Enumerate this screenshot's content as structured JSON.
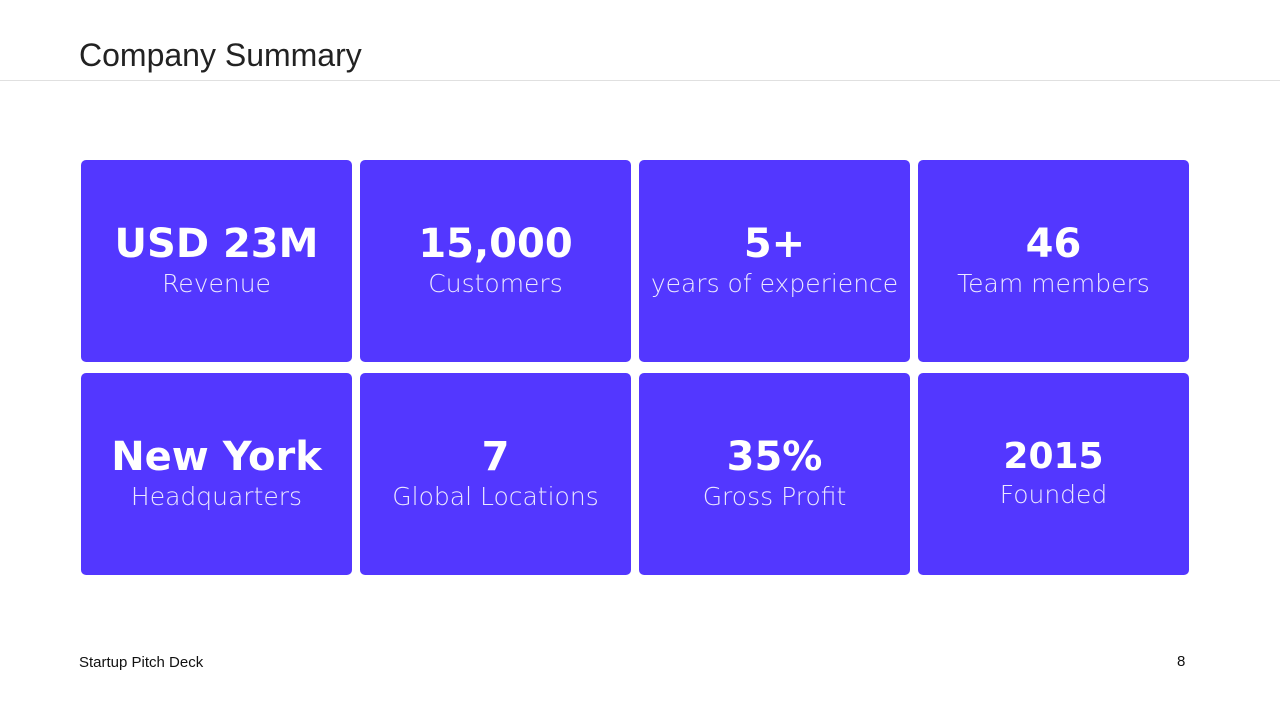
{
  "slide": {
    "title": "Company Summary",
    "footer_left": "Startup Pitch Deck",
    "page_number": "8",
    "accent_color": "#5337ff"
  },
  "cards": [
    {
      "value": "USD 23M",
      "label": "Revenue"
    },
    {
      "value": "15,000",
      "label": "Customers"
    },
    {
      "value": "5+",
      "label": "years of experience"
    },
    {
      "value": "46",
      "label": "Team members"
    },
    {
      "value": "New York",
      "label": "Headquarters"
    },
    {
      "value": "7",
      "label": "Global Locations"
    },
    {
      "value": "35%",
      "label": "Gross Profit"
    },
    {
      "value": "2015",
      "label": "Founded"
    }
  ]
}
